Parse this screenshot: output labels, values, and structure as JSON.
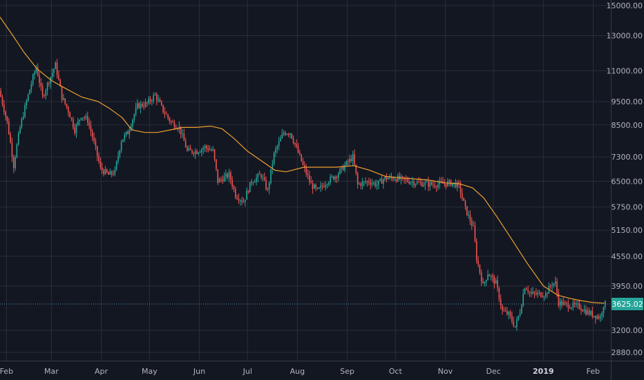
{
  "colors": {
    "background": "#131722",
    "grid": "#2a2e39",
    "up": "#26a69a",
    "down": "#ef5350",
    "ma": "#f0a030",
    "last_price_tag": "#26a69a"
  },
  "chart_data": {
    "type": "candlestick",
    "title": "",
    "xlabel": "",
    "ylabel": "",
    "y_scale": "log",
    "ylim": [
      2880,
      15000
    ],
    "grid": true,
    "y_ticks": [
      {
        "value": 15000,
        "label": "15000.00"
      },
      {
        "value": 13000,
        "label": "13000.00"
      },
      {
        "value": 11000,
        "label": "11000.00"
      },
      {
        "value": 9500,
        "label": "9500.00"
      },
      {
        "value": 8500,
        "label": "8500.00"
      },
      {
        "value": 7300,
        "label": "7300.00"
      },
      {
        "value": 6500,
        "label": "6500.00"
      },
      {
        "value": 5750,
        "label": "5750.00"
      },
      {
        "value": 5150,
        "label": "5150.00"
      },
      {
        "value": 4550,
        "label": "4550.00"
      },
      {
        "value": 3950,
        "label": "3950.00"
      },
      {
        "value": 3200,
        "label": "3200.00"
      },
      {
        "value": 2880,
        "label": "2880.00"
      }
    ],
    "x_ticks": [
      {
        "label": "Feb",
        "date": "2018-02-01"
      },
      {
        "label": "Mar",
        "date": "2018-03-01"
      },
      {
        "label": "Apr",
        "date": "2018-04-01"
      },
      {
        "label": "May",
        "date": "2018-05-01"
      },
      {
        "label": "Jun",
        "date": "2018-06-01"
      },
      {
        "label": "Jul",
        "date": "2018-07-01"
      },
      {
        "label": "Aug",
        "date": "2018-08-01"
      },
      {
        "label": "Sep",
        "date": "2018-09-01"
      },
      {
        "label": "Oct",
        "date": "2018-10-01"
      },
      {
        "label": "Nov",
        "date": "2018-11-01"
      },
      {
        "label": "Dec",
        "date": "2018-12-01"
      },
      {
        "label": "2019",
        "date": "2019-01-01",
        "bold": true
      },
      {
        "label": "Feb",
        "date": "2019-02-01"
      }
    ],
    "x_range": [
      "2018-01-28",
      "2019-02-12"
    ],
    "last_price": {
      "value": 3625.02,
      "label": "3625.02"
    },
    "price_anchors": [
      [
        "2018-01-28",
        10000
      ],
      [
        "2018-02-02",
        8600
      ],
      [
        "2018-02-06",
        7000
      ],
      [
        "2018-02-10",
        8400
      ],
      [
        "2018-02-14",
        9500
      ],
      [
        "2018-02-20",
        11200
      ],
      [
        "2018-02-24",
        9700
      ],
      [
        "2018-02-28",
        10500
      ],
      [
        "2018-03-04",
        11300
      ],
      [
        "2018-03-08",
        9700
      ],
      [
        "2018-03-12",
        9100
      ],
      [
        "2018-03-16",
        8300
      ],
      [
        "2018-03-20",
        8900
      ],
      [
        "2018-03-24",
        8700
      ],
      [
        "2018-03-28",
        7800
      ],
      [
        "2018-04-01",
        6900
      ],
      [
        "2018-04-06",
        6700
      ],
      [
        "2018-04-10",
        6800
      ],
      [
        "2018-04-14",
        7900
      ],
      [
        "2018-04-18",
        8200
      ],
      [
        "2018-04-24",
        9300
      ],
      [
        "2018-04-30",
        9400
      ],
      [
        "2018-05-05",
        9800
      ],
      [
        "2018-05-10",
        9100
      ],
      [
        "2018-05-15",
        8600
      ],
      [
        "2018-05-20",
        8400
      ],
      [
        "2018-05-25",
        7500
      ],
      [
        "2018-05-31",
        7500
      ],
      [
        "2018-06-05",
        7650
      ],
      [
        "2018-06-10",
        7500
      ],
      [
        "2018-06-13",
        6500
      ],
      [
        "2018-06-20",
        6700
      ],
      [
        "2018-06-24",
        6100
      ],
      [
        "2018-06-29",
        5900
      ],
      [
        "2018-07-04",
        6500
      ],
      [
        "2018-07-10",
        6700
      ],
      [
        "2018-07-14",
        6200
      ],
      [
        "2018-07-18",
        7400
      ],
      [
        "2018-07-24",
        8200
      ],
      [
        "2018-07-28",
        8200
      ],
      [
        "2018-08-01",
        7600
      ],
      [
        "2018-08-05",
        7000
      ],
      [
        "2018-08-10",
        6400
      ],
      [
        "2018-08-14",
        6200
      ],
      [
        "2018-08-20",
        6500
      ],
      [
        "2018-08-26",
        6700
      ],
      [
        "2018-08-31",
        7000
      ],
      [
        "2018-09-05",
        7300
      ],
      [
        "2018-09-08",
        6400
      ],
      [
        "2018-09-15",
        6500
      ],
      [
        "2018-09-20",
        6400
      ],
      [
        "2018-09-25",
        6600
      ],
      [
        "2018-10-01",
        6600
      ],
      [
        "2018-10-11",
        6500
      ],
      [
        "2018-10-15",
        6450
      ],
      [
        "2018-10-25",
        6400
      ],
      [
        "2018-11-06",
        6450
      ],
      [
        "2018-11-10",
        6350
      ],
      [
        "2018-11-14",
        5700
      ],
      [
        "2018-11-19",
        5200
      ],
      [
        "2018-11-21",
        4500
      ],
      [
        "2018-11-25",
        3950
      ],
      [
        "2018-11-28",
        4200
      ],
      [
        "2018-12-03",
        4000
      ],
      [
        "2018-12-07",
        3500
      ],
      [
        "2018-12-11",
        3450
      ],
      [
        "2018-12-15",
        3250
      ],
      [
        "2018-12-18",
        3500
      ],
      [
        "2018-12-21",
        3950
      ],
      [
        "2018-12-25",
        3800
      ],
      [
        "2018-12-29",
        3800
      ],
      [
        "2019-01-03",
        3800
      ],
      [
        "2019-01-07",
        4000
      ],
      [
        "2019-01-09",
        4000
      ],
      [
        "2019-01-11",
        3650
      ],
      [
        "2019-01-18",
        3600
      ],
      [
        "2019-01-24",
        3580
      ],
      [
        "2019-01-28",
        3500
      ],
      [
        "2019-02-01",
        3450
      ],
      [
        "2019-02-04",
        3420
      ],
      [
        "2019-02-06",
        3400
      ],
      [
        "2019-02-08",
        3625
      ]
    ],
    "ma_series": [
      [
        "2018-01-28",
        14200
      ],
      [
        "2018-02-05",
        13000
      ],
      [
        "2018-02-12",
        12000
      ],
      [
        "2018-02-20",
        11100
      ],
      [
        "2018-03-01",
        10500
      ],
      [
        "2018-03-10",
        10100
      ],
      [
        "2018-03-20",
        9700
      ],
      [
        "2018-03-30",
        9500
      ],
      [
        "2018-04-06",
        9200
      ],
      [
        "2018-04-14",
        8800
      ],
      [
        "2018-04-20",
        8300
      ],
      [
        "2018-04-28",
        8200
      ],
      [
        "2018-05-06",
        8200
      ],
      [
        "2018-05-14",
        8300
      ],
      [
        "2018-05-22",
        8400
      ],
      [
        "2018-05-30",
        8400
      ],
      [
        "2018-06-08",
        8450
      ],
      [
        "2018-06-15",
        8350
      ],
      [
        "2018-06-22",
        8000
      ],
      [
        "2018-07-01",
        7500
      ],
      [
        "2018-07-10",
        7150
      ],
      [
        "2018-07-18",
        6850
      ],
      [
        "2018-07-25",
        6800
      ],
      [
        "2018-08-05",
        6950
      ],
      [
        "2018-08-15",
        6950
      ],
      [
        "2018-08-25",
        6950
      ],
      [
        "2018-09-05",
        7000
      ],
      [
        "2018-09-15",
        6850
      ],
      [
        "2018-09-25",
        6650
      ],
      [
        "2018-10-05",
        6600
      ],
      [
        "2018-10-20",
        6550
      ],
      [
        "2018-11-01",
        6450
      ],
      [
        "2018-11-10",
        6420
      ],
      [
        "2018-11-18",
        6300
      ],
      [
        "2018-11-25",
        6000
      ],
      [
        "2018-12-03",
        5500
      ],
      [
        "2018-12-12",
        4950
      ],
      [
        "2018-12-22",
        4400
      ],
      [
        "2019-01-01",
        3950
      ],
      [
        "2019-01-10",
        3780
      ],
      [
        "2019-01-18",
        3720
      ],
      [
        "2019-01-25",
        3680
      ],
      [
        "2019-02-01",
        3650
      ],
      [
        "2019-02-08",
        3640
      ]
    ]
  }
}
